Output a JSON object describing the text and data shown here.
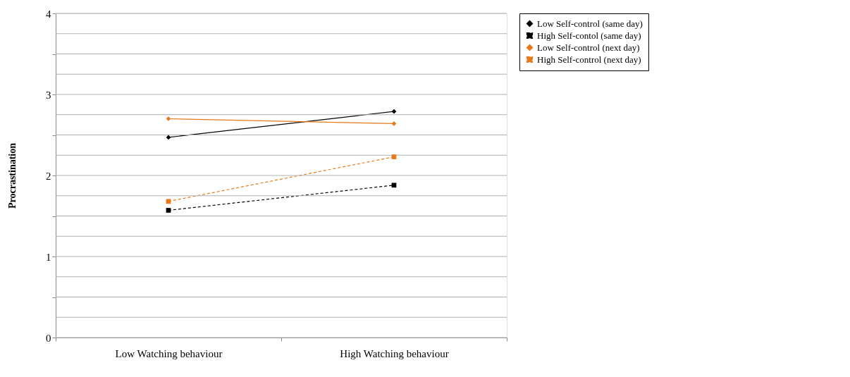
{
  "chart_data": {
    "type": "line",
    "ylabel": "Procrastination",
    "categories": [
      "Low Watching behaviour",
      "High Watching behaviour"
    ],
    "series": [
      {
        "name": "Low Self-control (same day)",
        "color": "#000000",
        "values": [
          2.47,
          2.79
        ],
        "marker": "diamond",
        "line_style": "solid"
      },
      {
        "name": "High Self-contol (same day)",
        "color": "#000000",
        "values": [
          1.57,
          1.88
        ],
        "marker": "square",
        "line_style": "dashed"
      },
      {
        "name": "Low Self-control (next day)",
        "color": "#e87818",
        "values": [
          2.7,
          2.64
        ],
        "marker": "diamond",
        "line_style": "solid"
      },
      {
        "name": "High Self-control (next day)",
        "color": "#e87818",
        "values": [
          1.68,
          2.23
        ],
        "marker": "square",
        "line_style": "dashed"
      }
    ],
    "ylim": [
      0,
      4
    ],
    "yticks": [
      0,
      {
        "value": 0.25,
        "label": null
      },
      {
        "value": 0.5,
        "label": null
      },
      {
        "value": 0.75,
        "label": null
      },
      1,
      {
        "value": 1.25,
        "label": null
      },
      {
        "value": 1.5,
        "label": null
      },
      {
        "value": 1.75,
        "label": null
      },
      2,
      {
        "value": 2.25,
        "label": null
      },
      {
        "value": 2.5,
        "label": null
      },
      {
        "value": 2.75,
        "label": null
      },
      3,
      {
        "value": 3.25,
        "label": null
      },
      {
        "value": 3.5,
        "label": null
      },
      {
        "value": 3.75,
        "label": null
      },
      4
    ],
    "grid": "y",
    "legend": "right"
  }
}
